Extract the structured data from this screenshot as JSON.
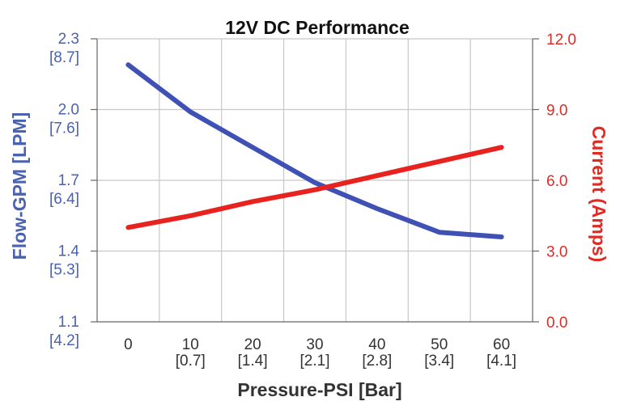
{
  "chart_data": {
    "type": "line",
    "title": "12V DC Performance",
    "xlabel": "Pressure-PSI [Bar]",
    "ylabel_left": "Flow-GPM [LPM]",
    "ylabel_right": "Current (Amps)",
    "x_ticks": [
      {
        "value": 0,
        "primary": "0",
        "secondary": ""
      },
      {
        "value": 10,
        "primary": "10",
        "secondary": "[0.7]"
      },
      {
        "value": 20,
        "primary": "20",
        "secondary": "[1.4]"
      },
      {
        "value": 30,
        "primary": "30",
        "secondary": "[2.1]"
      },
      {
        "value": 40,
        "primary": "40",
        "secondary": "[2.8]"
      },
      {
        "value": 50,
        "primary": "50",
        "secondary": "[3.4]"
      },
      {
        "value": 60,
        "primary": "60",
        "secondary": "[4.1]"
      }
    ],
    "y_left_ticks": [
      {
        "value": 2.3,
        "primary": "2.3",
        "secondary": "[8.7]"
      },
      {
        "value": 2.0,
        "primary": "2.0",
        "secondary": "[7.6]"
      },
      {
        "value": 1.7,
        "primary": "1.7",
        "secondary": "[6.4]"
      },
      {
        "value": 1.4,
        "primary": "1.4",
        "secondary": "[5.3]"
      },
      {
        "value": 1.1,
        "primary": "1.1",
        "secondary": "[4.2]"
      }
    ],
    "y_right_ticks": [
      "12.0",
      "9.0",
      "6.0",
      "3.0",
      "0.0"
    ],
    "xlim": [
      -5,
      65
    ],
    "ylim_left": [
      1.1,
      2.3
    ],
    "ylim_right": [
      0,
      12
    ],
    "grid": true,
    "series": [
      {
        "name": "Flow-GPM [LPM]",
        "axis": "left",
        "color": "#3f51b5",
        "x": [
          0,
          10,
          20,
          30,
          40,
          50,
          60
        ],
        "y": [
          2.19,
          1.99,
          1.84,
          1.69,
          1.58,
          1.48,
          1.46
        ]
      },
      {
        "name": "Current (Amps)",
        "axis": "right",
        "color": "#e8231f",
        "x": [
          0,
          10,
          20,
          30,
          40,
          50,
          60
        ],
        "y": [
          4.0,
          4.5,
          5.1,
          5.6,
          6.2,
          6.8,
          7.4
        ]
      }
    ],
    "left_axis_color": "#4a62b0",
    "right_axis_color": "#e02b24"
  }
}
